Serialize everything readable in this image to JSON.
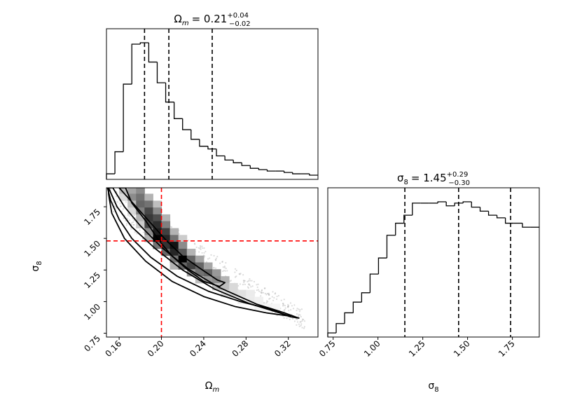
{
  "chart_data": [
    {
      "panel": "omega_m-marginal",
      "type": "histogram",
      "title": {
        "text": "Ω",
        "sub": "m",
        "value": "= 0.21",
        "plus": "+0.04",
        "minus": "−0.02"
      },
      "xlim": [
        0.148,
        0.348
      ],
      "bin_edges": [
        0.148,
        0.156,
        0.164,
        0.172,
        0.18,
        0.188,
        0.196,
        0.204,
        0.212,
        0.22,
        0.228,
        0.236,
        0.244,
        0.252,
        0.26,
        0.268,
        0.276,
        0.284,
        0.292,
        0.3,
        0.308,
        0.316,
        0.324,
        0.332,
        0.34,
        0.348
      ],
      "counts": [
        0.02,
        0.18,
        0.67,
        0.96,
        0.97,
        0.83,
        0.68,
        0.54,
        0.42,
        0.34,
        0.27,
        0.22,
        0.2,
        0.15,
        0.12,
        0.1,
        0.08,
        0.06,
        0.05,
        0.04,
        0.04,
        0.03,
        0.02,
        0.02,
        0.01
      ],
      "quantiles": [
        0.184,
        0.207,
        0.248
      ],
      "show_ticks": false
    },
    {
      "panel": "sigma_8-marginal",
      "type": "histogram",
      "title": {
        "text": "σ",
        "sub": "8",
        "value": "= 1.45",
        "plus": "+0.29",
        "minus": "−0.30"
      },
      "xlim": [
        0.72,
        1.9
      ],
      "bin_edges": [
        0.72,
        0.767,
        0.814,
        0.862,
        0.909,
        0.956,
        1.003,
        1.05,
        1.098,
        1.145,
        1.192,
        1.239,
        1.286,
        1.334,
        1.381,
        1.428,
        1.475,
        1.522,
        1.57,
        1.617,
        1.664,
        1.711,
        1.758,
        1.806,
        1.853,
        1.9
      ],
      "counts": [
        0.01,
        0.08,
        0.16,
        0.24,
        0.31,
        0.45,
        0.57,
        0.74,
        0.83,
        0.89,
        0.98,
        0.98,
        0.98,
        0.99,
        0.96,
        0.98,
        0.99,
        0.95,
        0.92,
        0.89,
        0.87,
        0.83,
        0.83,
        0.8,
        0.8
      ],
      "quantiles": [
        1.15,
        1.45,
        1.74
      ],
      "xticks": [
        "0.75",
        "1.00",
        "1.25",
        "1.50",
        "1.75"
      ],
      "xtick_values": [
        0.75,
        1.0,
        1.25,
        1.5,
        1.75
      ],
      "xlabel": {
        "text": "σ",
        "sub": "8"
      }
    },
    {
      "panel": "joint-2d",
      "type": "heatmap",
      "xlim": [
        0.148,
        0.348
      ],
      "ylim": [
        0.72,
        1.9
      ],
      "xticks": [
        "0.16",
        "0.20",
        "0.24",
        "0.28",
        "0.32"
      ],
      "xtick_values": [
        0.16,
        0.2,
        0.24,
        0.28,
        0.32
      ],
      "yticks": [
        "0.75",
        "1.00",
        "1.25",
        "1.50",
        "1.75"
      ],
      "ytick_values": [
        0.75,
        1.0,
        1.25,
        1.5,
        1.75
      ],
      "xlabel": {
        "text": "Ω",
        "sub": "m"
      },
      "ylabel": {
        "text": "σ",
        "sub": "8"
      },
      "truth": {
        "x": 0.2,
        "y": 1.48,
        "color": "#ff0000"
      },
      "cells": [
        {
          "x": 0.164,
          "y": 1.88,
          "v": 0.25
        },
        {
          "x": 0.172,
          "y": 1.88,
          "v": 0.35
        },
        {
          "x": 0.18,
          "y": 1.88,
          "v": 0.45
        },
        {
          "x": 0.164,
          "y": 1.826,
          "v": 0.15
        },
        {
          "x": 0.172,
          "y": 1.826,
          "v": 0.45
        },
        {
          "x": 0.18,
          "y": 1.826,
          "v": 0.55
        },
        {
          "x": 0.188,
          "y": 1.826,
          "v": 0.3
        },
        {
          "x": 0.172,
          "y": 1.771,
          "v": 0.25
        },
        {
          "x": 0.18,
          "y": 1.771,
          "v": 0.6
        },
        {
          "x": 0.188,
          "y": 1.771,
          "v": 0.55
        },
        {
          "x": 0.196,
          "y": 1.771,
          "v": 0.25
        },
        {
          "x": 0.172,
          "y": 1.717,
          "v": 0.15
        },
        {
          "x": 0.18,
          "y": 1.717,
          "v": 0.5
        },
        {
          "x": 0.188,
          "y": 1.717,
          "v": 0.72
        },
        {
          "x": 0.196,
          "y": 1.717,
          "v": 0.45
        },
        {
          "x": 0.18,
          "y": 1.663,
          "v": 0.3
        },
        {
          "x": 0.188,
          "y": 1.663,
          "v": 0.78
        },
        {
          "x": 0.196,
          "y": 1.663,
          "v": 0.7
        },
        {
          "x": 0.204,
          "y": 1.663,
          "v": 0.3
        },
        {
          "x": 0.18,
          "y": 1.609,
          "v": 0.2
        },
        {
          "x": 0.188,
          "y": 1.609,
          "v": 0.72
        },
        {
          "x": 0.196,
          "y": 1.609,
          "v": 0.82
        },
        {
          "x": 0.204,
          "y": 1.609,
          "v": 0.5
        },
        {
          "x": 0.188,
          "y": 1.554,
          "v": 0.45
        },
        {
          "x": 0.196,
          "y": 1.554,
          "v": 0.88
        },
        {
          "x": 0.204,
          "y": 1.554,
          "v": 0.75
        },
        {
          "x": 0.212,
          "y": 1.554,
          "v": 0.3
        },
        {
          "x": 0.188,
          "y": 1.5,
          "v": 0.3
        },
        {
          "x": 0.196,
          "y": 1.5,
          "v": 0.98
        },
        {
          "x": 0.204,
          "y": 1.5,
          "v": 0.85
        },
        {
          "x": 0.212,
          "y": 1.5,
          "v": 0.55
        },
        {
          "x": 0.22,
          "y": 1.5,
          "v": 0.2
        },
        {
          "x": 0.196,
          "y": 1.446,
          "v": 0.55
        },
        {
          "x": 0.204,
          "y": 1.446,
          "v": 0.8
        },
        {
          "x": 0.212,
          "y": 1.446,
          "v": 0.92
        },
        {
          "x": 0.22,
          "y": 1.446,
          "v": 0.45
        },
        {
          "x": 0.204,
          "y": 1.391,
          "v": 0.6
        },
        {
          "x": 0.212,
          "y": 1.391,
          "v": 0.85
        },
        {
          "x": 0.22,
          "y": 1.391,
          "v": 0.65
        },
        {
          "x": 0.228,
          "y": 1.391,
          "v": 0.3
        },
        {
          "x": 0.212,
          "y": 1.337,
          "v": 0.55
        },
        {
          "x": 0.22,
          "y": 1.337,
          "v": 1.0
        },
        {
          "x": 0.228,
          "y": 1.337,
          "v": 0.6
        },
        {
          "x": 0.236,
          "y": 1.337,
          "v": 0.35
        },
        {
          "x": 0.212,
          "y": 1.283,
          "v": 0.3
        },
        {
          "x": 0.22,
          "y": 1.283,
          "v": 0.6
        },
        {
          "x": 0.228,
          "y": 1.283,
          "v": 0.75
        },
        {
          "x": 0.236,
          "y": 1.283,
          "v": 0.6
        },
        {
          "x": 0.244,
          "y": 1.283,
          "v": 0.35
        },
        {
          "x": 0.228,
          "y": 1.229,
          "v": 0.4
        },
        {
          "x": 0.236,
          "y": 1.229,
          "v": 0.55
        },
        {
          "x": 0.244,
          "y": 1.229,
          "v": 0.6
        },
        {
          "x": 0.252,
          "y": 1.229,
          "v": 0.4
        },
        {
          "x": 0.236,
          "y": 1.174,
          "v": 0.25
        },
        {
          "x": 0.244,
          "y": 1.174,
          "v": 0.4
        },
        {
          "x": 0.252,
          "y": 1.174,
          "v": 0.45
        },
        {
          "x": 0.26,
          "y": 1.174,
          "v": 0.3
        },
        {
          "x": 0.252,
          "y": 1.12,
          "v": 0.25
        },
        {
          "x": 0.26,
          "y": 1.12,
          "v": 0.25
        },
        {
          "x": 0.268,
          "y": 1.12,
          "v": 0.15
        },
        {
          "x": 0.26,
          "y": 1.066,
          "v": 0.12
        },
        {
          "x": 0.268,
          "y": 1.066,
          "v": 0.15
        },
        {
          "x": 0.276,
          "y": 1.066,
          "v": 0.12
        },
        {
          "x": 0.284,
          "y": 1.066,
          "v": 0.08
        },
        {
          "x": 0.276,
          "y": 1.011,
          "v": 0.07
        },
        {
          "x": 0.284,
          "y": 1.011,
          "v": 0.08
        },
        {
          "x": 0.292,
          "y": 1.011,
          "v": 0.06
        },
        {
          "x": 0.292,
          "y": 0.957,
          "v": 0.04
        },
        {
          "x": 0.3,
          "y": 0.957,
          "v": 0.04
        },
        {
          "x": 0.308,
          "y": 0.957,
          "v": 0.03
        }
      ],
      "contours": [
        [
          [
            0.16,
            1.9
          ],
          [
            0.175,
            1.76
          ],
          [
            0.19,
            1.62
          ],
          [
            0.205,
            1.48
          ],
          [
            0.22,
            1.36
          ],
          [
            0.237,
            1.26
          ],
          [
            0.253,
            1.17
          ],
          [
            0.26,
            1.15
          ],
          [
            0.255,
            1.12
          ],
          [
            0.24,
            1.16
          ],
          [
            0.225,
            1.25
          ],
          [
            0.21,
            1.36
          ],
          [
            0.197,
            1.49
          ],
          [
            0.185,
            1.64
          ],
          [
            0.172,
            1.78
          ],
          [
            0.166,
            1.9
          ]
        ],
        [
          [
            0.154,
            1.9
          ],
          [
            0.165,
            1.75
          ],
          [
            0.18,
            1.6
          ],
          [
            0.2,
            1.43
          ],
          [
            0.225,
            1.26
          ],
          [
            0.255,
            1.11
          ],
          [
            0.29,
            0.98
          ],
          [
            0.315,
            0.915
          ],
          [
            0.328,
            0.875
          ],
          [
            0.33,
            0.87
          ],
          [
            0.322,
            0.88
          ],
          [
            0.305,
            0.935
          ],
          [
            0.275,
            1.0
          ],
          [
            0.245,
            1.08
          ],
          [
            0.215,
            1.2
          ],
          [
            0.19,
            1.35
          ],
          [
            0.172,
            1.5
          ],
          [
            0.16,
            1.65
          ],
          [
            0.152,
            1.8
          ],
          [
            0.149,
            1.9
          ]
        ],
        [
          [
            0.15,
            1.9
          ],
          [
            0.158,
            1.75
          ],
          [
            0.172,
            1.59
          ],
          [
            0.194,
            1.42
          ],
          [
            0.22,
            1.25
          ],
          [
            0.25,
            1.1
          ],
          [
            0.283,
            0.985
          ],
          [
            0.31,
            0.915
          ],
          [
            0.322,
            0.885
          ],
          [
            0.3,
            0.91
          ],
          [
            0.27,
            0.96
          ],
          [
            0.24,
            1.04
          ],
          [
            0.21,
            1.16
          ],
          [
            0.185,
            1.32
          ],
          [
            0.165,
            1.5
          ],
          [
            0.153,
            1.7
          ],
          [
            0.15,
            1.85
          ]
        ]
      ]
    }
  ]
}
